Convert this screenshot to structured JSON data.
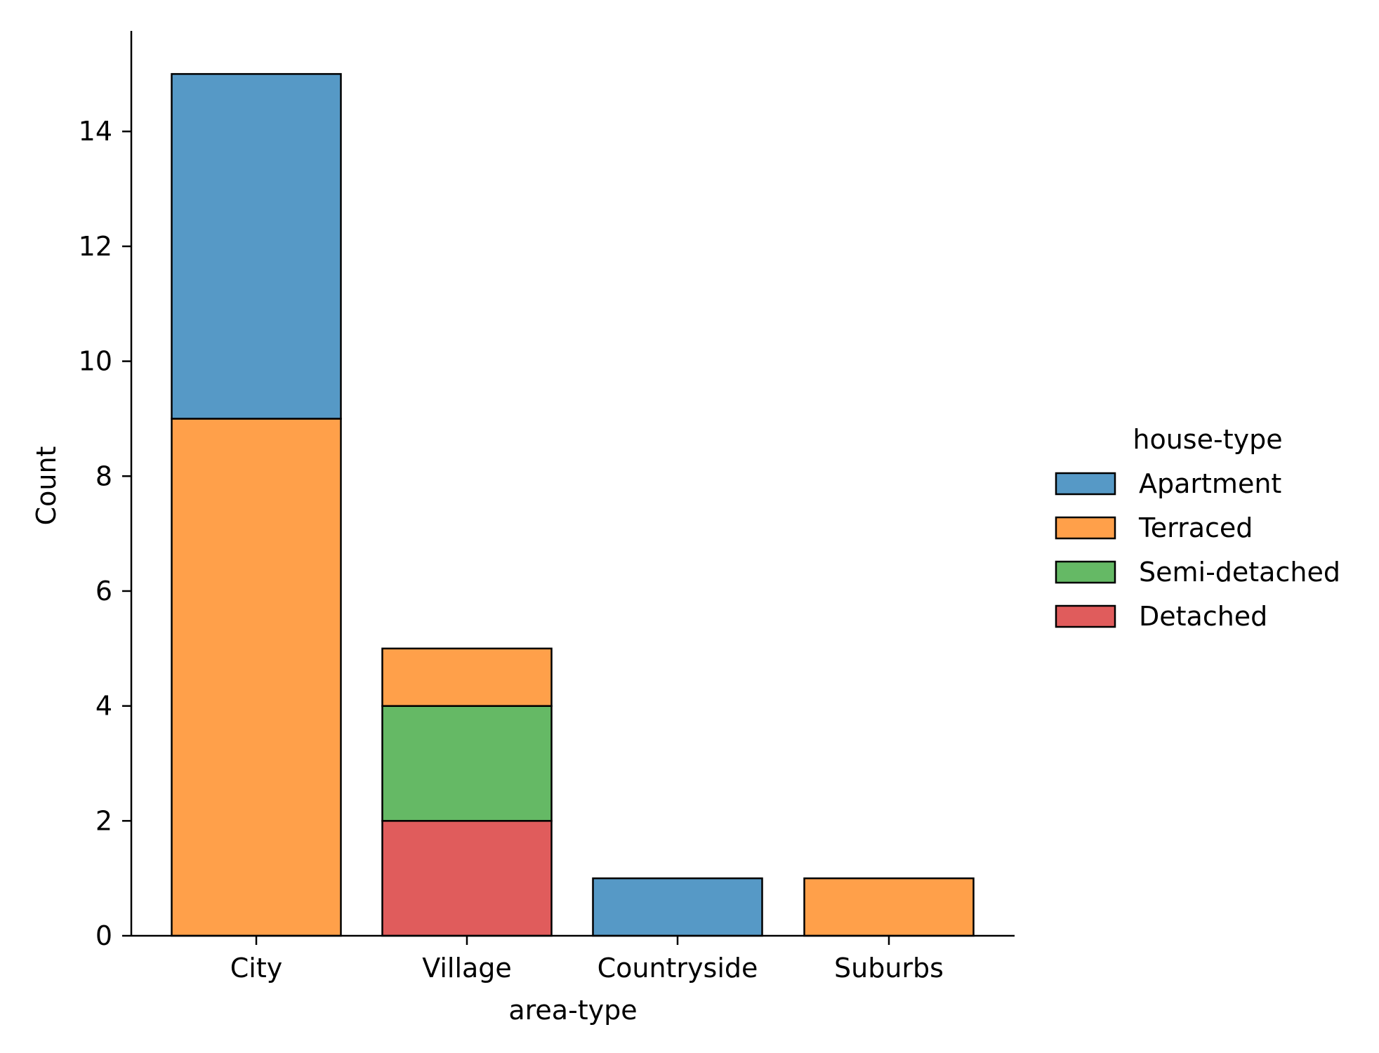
{
  "chart_data": {
    "type": "bar",
    "stacked": true,
    "title": "",
    "xlabel": "area-type",
    "ylabel": "Count",
    "categories": [
      "City",
      "Village",
      "Countryside",
      "Suburbs"
    ],
    "series": [
      {
        "name": "Detached",
        "color": "#e05c5c",
        "values": [
          0,
          2,
          0,
          0
        ]
      },
      {
        "name": "Semi-detached",
        "color": "#65b965",
        "values": [
          0,
          2,
          0,
          0
        ]
      },
      {
        "name": "Terraced",
        "color": "#ffa04a",
        "values": [
          9,
          1,
          0,
          1
        ]
      },
      {
        "name": "Apartment",
        "color": "#5699c6",
        "values": [
          6,
          0,
          1,
          0
        ]
      }
    ],
    "ylim": [
      0,
      15.75
    ],
    "yticks": [
      "0",
      "2",
      "4",
      "6",
      "8",
      "10",
      "12",
      "14"
    ],
    "legend": {
      "title": "house-type",
      "placement": "right",
      "entries": [
        "Apartment",
        "Terraced",
        "Semi-detached",
        "Detached"
      ]
    },
    "grid": false
  }
}
